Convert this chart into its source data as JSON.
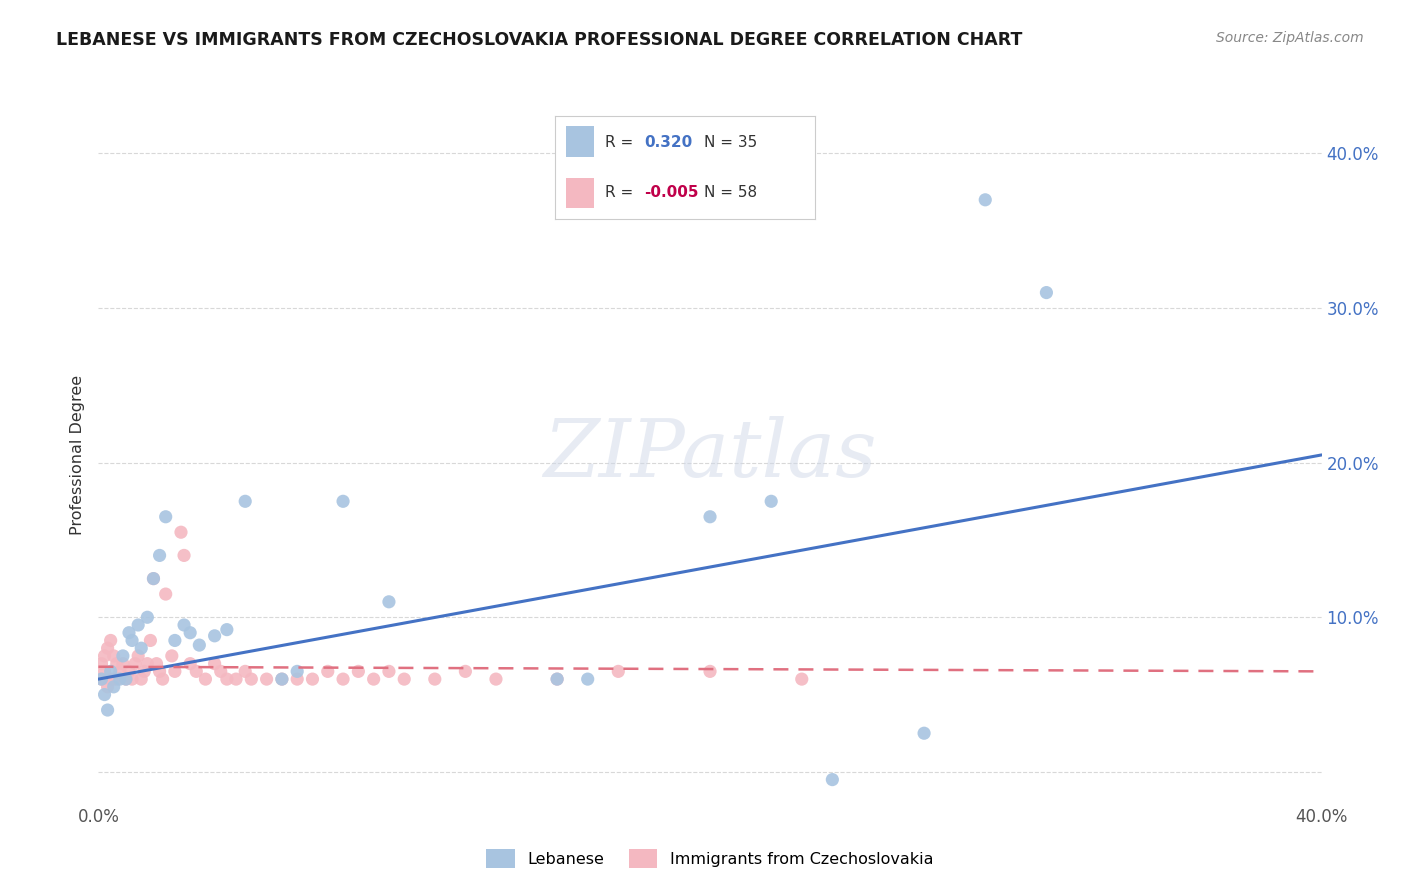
{
  "title": "LEBANESE VS IMMIGRANTS FROM CZECHOSLOVAKIA PROFESSIONAL DEGREE CORRELATION CHART",
  "source": "Source: ZipAtlas.com",
  "ylabel": "Professional Degree",
  "xlim": [
    0.0,
    0.4
  ],
  "ylim": [
    -0.02,
    0.43
  ],
  "r_lebanese": 0.32,
  "n_lebanese": 35,
  "r_czech": -0.005,
  "n_czech": 58,
  "lebanese_color": "#a8c4e0",
  "czech_color": "#f4b8c1",
  "lebanese_line_color": "#4472c4",
  "czech_line_color": "#e07080",
  "watermark": "ZIPatlas",
  "leb_line_x0": 0.0,
  "leb_line_y0": 0.06,
  "leb_line_x1": 0.4,
  "leb_line_y1": 0.205,
  "cz_line_x0": 0.0,
  "cz_line_y0": 0.068,
  "cz_line_x1": 0.4,
  "cz_line_y1": 0.065,
  "lebanese_x": [
    0.001,
    0.002,
    0.003,
    0.004,
    0.005,
    0.007,
    0.008,
    0.009,
    0.01,
    0.011,
    0.013,
    0.014,
    0.016,
    0.018,
    0.02,
    0.022,
    0.025,
    0.028,
    0.03,
    0.033,
    0.038,
    0.042,
    0.048,
    0.06,
    0.065,
    0.08,
    0.095,
    0.15,
    0.16,
    0.2,
    0.22,
    0.24,
    0.27,
    0.29,
    0.31
  ],
  "lebanese_y": [
    0.06,
    0.05,
    0.04,
    0.065,
    0.055,
    0.06,
    0.075,
    0.06,
    0.09,
    0.085,
    0.095,
    0.08,
    0.1,
    0.125,
    0.14,
    0.165,
    0.085,
    0.095,
    0.09,
    0.082,
    0.088,
    0.092,
    0.175,
    0.06,
    0.065,
    0.175,
    0.11,
    0.06,
    0.06,
    0.165,
    0.175,
    -0.005,
    0.025,
    0.37,
    0.31
  ],
  "czech_x": [
    0.001,
    0.001,
    0.002,
    0.002,
    0.003,
    0.003,
    0.004,
    0.004,
    0.005,
    0.005,
    0.006,
    0.006,
    0.007,
    0.008,
    0.009,
    0.01,
    0.011,
    0.012,
    0.013,
    0.014,
    0.015,
    0.016,
    0.017,
    0.018,
    0.019,
    0.02,
    0.021,
    0.022,
    0.024,
    0.025,
    0.027,
    0.028,
    0.03,
    0.032,
    0.035,
    0.038,
    0.04,
    0.042,
    0.045,
    0.048,
    0.05,
    0.055,
    0.06,
    0.065,
    0.07,
    0.075,
    0.08,
    0.085,
    0.09,
    0.095,
    0.1,
    0.11,
    0.12,
    0.13,
    0.15,
    0.17,
    0.2,
    0.23
  ],
  "czech_y": [
    0.06,
    0.07,
    0.065,
    0.075,
    0.055,
    0.08,
    0.06,
    0.085,
    0.06,
    0.075,
    0.06,
    0.07,
    0.065,
    0.07,
    0.06,
    0.065,
    0.06,
    0.07,
    0.075,
    0.06,
    0.065,
    0.07,
    0.085,
    0.125,
    0.07,
    0.065,
    0.06,
    0.115,
    0.075,
    0.065,
    0.155,
    0.14,
    0.07,
    0.065,
    0.06,
    0.07,
    0.065,
    0.06,
    0.06,
    0.065,
    0.06,
    0.06,
    0.06,
    0.06,
    0.06,
    0.065,
    0.06,
    0.065,
    0.06,
    0.065,
    0.06,
    0.06,
    0.065,
    0.06,
    0.06,
    0.065,
    0.065,
    0.06
  ],
  "background_color": "#ffffff",
  "grid_color": "#d8d8d8",
  "legend_r_color_leb": "#4472c4",
  "legend_r_color_cz": "#c0004a",
  "legend_n_color": "#333333"
}
